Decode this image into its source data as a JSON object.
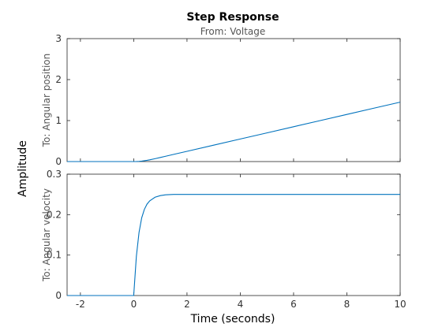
{
  "chart_data": {
    "type": "line",
    "title": "Step Response",
    "subtitle": "From: Voltage",
    "xlabel": "Time (seconds)",
    "ylabel": "Amplitude",
    "line_color": "#0072bd",
    "grid": false,
    "xlim": [
      -2.5,
      10
    ],
    "xticks": [
      -2,
      0,
      2,
      4,
      6,
      8,
      10
    ],
    "xtick_labels": [
      "-2",
      "0",
      "2",
      "4",
      "6",
      "8",
      "10"
    ],
    "subplots": [
      {
        "channel_label": "To: Angular position",
        "ylim": [
          0,
          3
        ],
        "yticks": [
          0,
          1,
          2,
          3
        ],
        "ytick_labels": [
          "0",
          "1",
          "2",
          "3"
        ],
        "series": [
          {
            "x": [
              -2.5,
              0,
              0.1,
              0.2,
              0.3,
              0.4,
              0.5,
              0.6,
              0.8,
              1,
              1.2,
              1.5,
              2,
              3,
              4,
              5,
              6,
              7,
              8,
              9,
              10
            ],
            "values": [
              0,
              0,
              0.001,
              0.005,
              0.011,
              0.02,
              0.03,
              0.042,
              0.07,
              0.1,
              0.13,
              0.176,
              0.25,
              0.4,
              0.55,
              0.7,
              0.85,
              1.0,
              1.15,
              1.3,
              1.45
            ]
          }
        ]
      },
      {
        "channel_label": "To: Angular velocity",
        "ylim": [
          0,
          0.3
        ],
        "yticks": [
          0,
          0.1,
          0.2,
          0.3
        ],
        "ytick_labels": [
          "0",
          "0.1",
          "0.2",
          "0.3"
        ],
        "series": [
          {
            "x": [
              -2.5,
              0,
              0.1,
              0.2,
              0.3,
              0.4,
              0.5,
              0.6,
              0.8,
              1,
              1.2,
              1.5,
              2,
              3,
              4,
              5,
              6,
              7,
              8,
              9,
              10
            ],
            "values": [
              0,
              0,
              0.097,
              0.156,
              0.192,
              0.213,
              0.226,
              0.234,
              0.243,
              0.247,
              0.249,
              0.25,
              0.25,
              0.25,
              0.25,
              0.25,
              0.25,
              0.25,
              0.25,
              0.25,
              0.25
            ]
          }
        ]
      }
    ]
  }
}
